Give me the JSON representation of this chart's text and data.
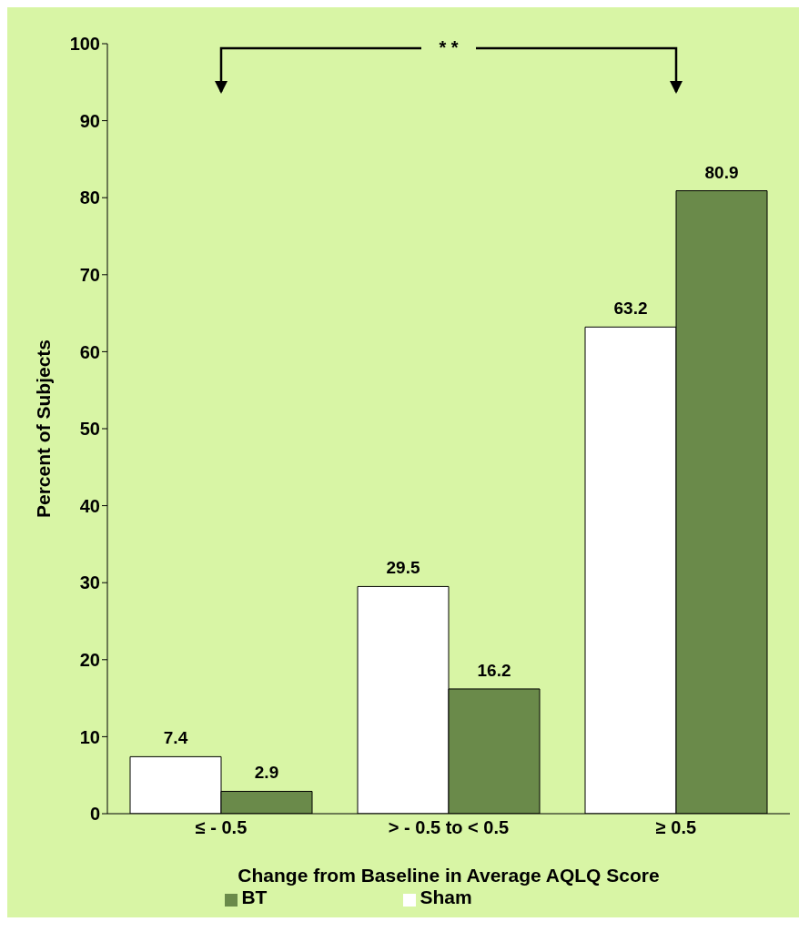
{
  "chart_data": {
    "type": "bar",
    "categories": [
      "≤ - 0.5",
      "> - 0.5 to < 0.5",
      "≥ 0.5"
    ],
    "series": [
      {
        "name": "Sham",
        "color": "#ffffff",
        "values": [
          7.4,
          29.5,
          63.2
        ]
      },
      {
        "name": "BT",
        "color": "#6a8a4a",
        "values": [
          2.9,
          16.2,
          80.9
        ]
      }
    ],
    "xlabel": "Change from Baseline in Average AQLQ Score",
    "ylabel": "Percent of Subjects",
    "ylim": [
      0,
      100
    ],
    "yticks": [
      0,
      10,
      20,
      30,
      40,
      50,
      60,
      70,
      80,
      90,
      100
    ],
    "data_labels": true,
    "grid": false,
    "legend": "bottom",
    "annotations": [
      "* *"
    ]
  }
}
